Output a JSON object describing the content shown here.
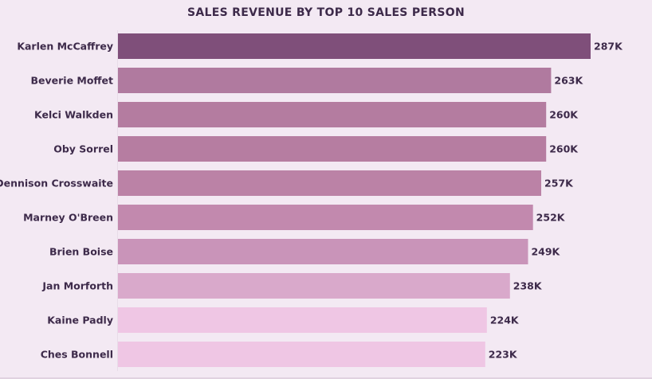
{
  "chart_data": {
    "type": "bar",
    "orientation": "horizontal",
    "title": "SALES REVENUE BY TOP 10 SALES PERSON",
    "categories": [
      "Karlen McCaffrey",
      "Beverie Moffet",
      "Kelci Walkden",
      "Oby Sorrel",
      "Dennison Crosswaite",
      "Marney O'Breen",
      "Brien Boise",
      "Jan Morforth",
      "Kaine Padly",
      "Ches Bonnell"
    ],
    "values": [
      287,
      263,
      260,
      260,
      257,
      252,
      249,
      238,
      224,
      223
    ],
    "data_labels": [
      "287K",
      "263K",
      "260K",
      "260K",
      "257K",
      "252K",
      "249K",
      "238K",
      "224K",
      "223K"
    ],
    "bar_colors": [
      "#7f4f7a",
      "#b07a9f",
      "#b47ca0",
      "#b67da1",
      "#bb82a6",
      "#c289ae",
      "#c994b9",
      "#d9a9cb",
      "#efc6e4",
      "#efc6e4"
    ],
    "xlim": [
      0,
      287
    ],
    "grid": false,
    "legend": "none"
  }
}
